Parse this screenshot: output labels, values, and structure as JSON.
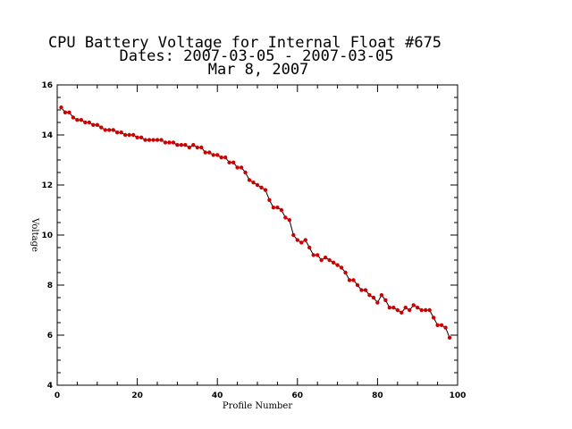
{
  "chart_data": {
    "type": "line",
    "title": [
      "CPU Battery Voltage for Internal Float #675",
      "Dates:  2007-03-05 -  2007-03-05",
      "Mar  8, 2007"
    ],
    "xlabel": "Profile Number",
    "ylabel": "Voltage",
    "xlim": [
      0,
      100
    ],
    "ylim": [
      4,
      16
    ],
    "xticks": [
      0,
      20,
      40,
      60,
      80,
      100
    ],
    "yticks": [
      4,
      6,
      8,
      10,
      12,
      14,
      16
    ],
    "grid": false,
    "colors": {
      "line": "#000000",
      "marker": "#cc0000"
    },
    "series": [
      {
        "x": [
          1,
          2,
          3,
          4,
          5,
          6,
          7,
          8,
          9,
          10,
          11,
          12,
          13,
          14,
          15,
          16,
          17,
          18,
          19,
          20,
          21,
          22,
          23,
          24,
          25,
          26,
          27,
          28,
          29,
          30,
          31,
          32,
          33,
          34,
          35,
          36,
          37,
          38,
          39,
          40,
          41,
          42,
          43,
          44,
          45,
          46,
          47,
          48,
          49,
          50,
          51,
          52,
          53,
          54,
          55,
          56,
          57,
          58,
          59,
          60,
          61,
          62,
          63,
          64,
          65,
          66,
          67,
          68,
          69,
          70,
          71,
          72,
          73,
          74,
          75,
          76,
          77,
          78,
          79,
          80,
          81,
          82,
          83,
          84,
          85,
          86,
          87,
          88,
          89,
          90,
          91,
          92,
          93,
          94,
          95,
          96,
          97,
          98
        ],
        "y": [
          15.1,
          14.9,
          14.9,
          14.7,
          14.6,
          14.6,
          14.5,
          14.5,
          14.4,
          14.4,
          14.3,
          14.2,
          14.2,
          14.2,
          14.1,
          14.1,
          14.0,
          14.0,
          14.0,
          13.9,
          13.9,
          13.8,
          13.8,
          13.8,
          13.8,
          13.8,
          13.7,
          13.7,
          13.7,
          13.6,
          13.6,
          13.6,
          13.5,
          13.6,
          13.5,
          13.5,
          13.3,
          13.3,
          13.2,
          13.2,
          13.1,
          13.1,
          12.9,
          12.9,
          12.7,
          12.7,
          12.5,
          12.2,
          12.1,
          12.0,
          11.9,
          11.8,
          11.4,
          11.1,
          11.1,
          11.0,
          10.7,
          10.6,
          10.0,
          9.8,
          9.7,
          9.8,
          9.5,
          9.2,
          9.2,
          9.0,
          9.1,
          9.0,
          8.9,
          8.8,
          8.7,
          8.5,
          8.2,
          8.2,
          8.0,
          7.8,
          7.8,
          7.6,
          7.5,
          7.3,
          7.6,
          7.4,
          7.1,
          7.1,
          7.0,
          6.9,
          7.1,
          7.0,
          7.2,
          7.1,
          7.0,
          7.0,
          7.0,
          6.7,
          6.4,
          6.4,
          6.3,
          5.9
        ]
      }
    ]
  }
}
